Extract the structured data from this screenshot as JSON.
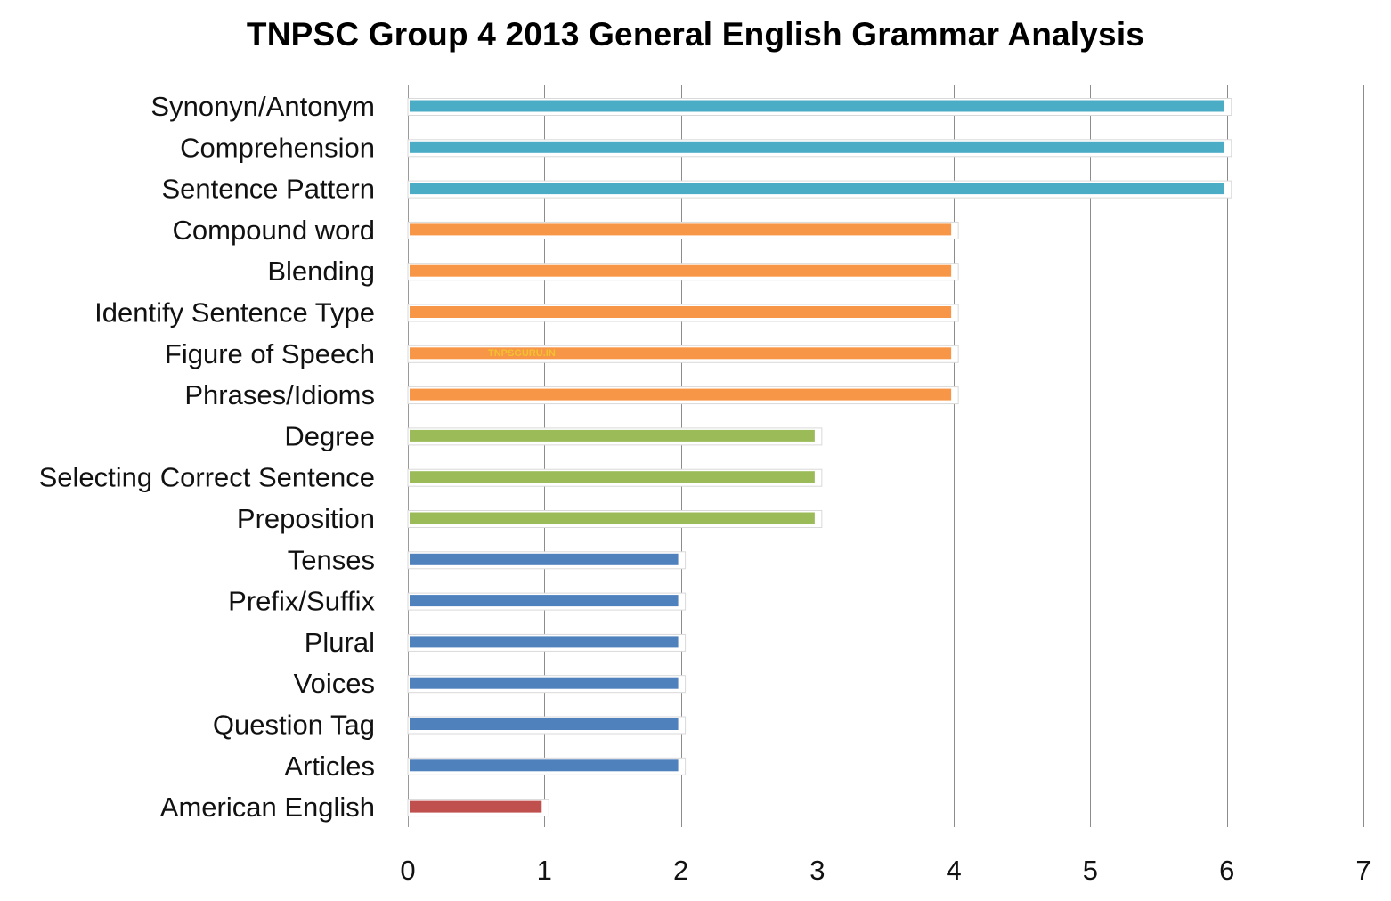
{
  "chart_data": {
    "type": "bar",
    "orientation": "horizontal",
    "title": "TNPSC Group 4 2013 General English Grammar Analysis",
    "xlabel": "",
    "ylabel": "",
    "xlim": [
      0,
      7
    ],
    "x_ticks": [
      "0",
      "1",
      "2",
      "3",
      "4",
      "5",
      "6",
      "7"
    ],
    "grid": "vertical",
    "legend": "none",
    "watermark": "TNPSGURU.IN",
    "categories": [
      "Synonyn/Antonym",
      "Comprehension",
      "Sentence Pattern",
      "Compound word",
      "Blending",
      "Identify Sentence Type",
      "Figure of Speech",
      "Phrases/Idioms",
      "Degree",
      "Selecting Correct Sentence",
      "Preposition",
      "Tenses",
      "Prefix/Suffix",
      "Plural",
      "Voices",
      "Question Tag",
      "Articles",
      "American English"
    ],
    "values": [
      6,
      6,
      6,
      4,
      4,
      4,
      4,
      4,
      3,
      3,
      3,
      2,
      2,
      2,
      2,
      2,
      2,
      1
    ],
    "bar_colors": {
      "1": "#c0504d",
      "2": "#4f81bd",
      "3": "#9bbb59",
      "4": "#f79646",
      "6": "#4bacc6"
    }
  }
}
